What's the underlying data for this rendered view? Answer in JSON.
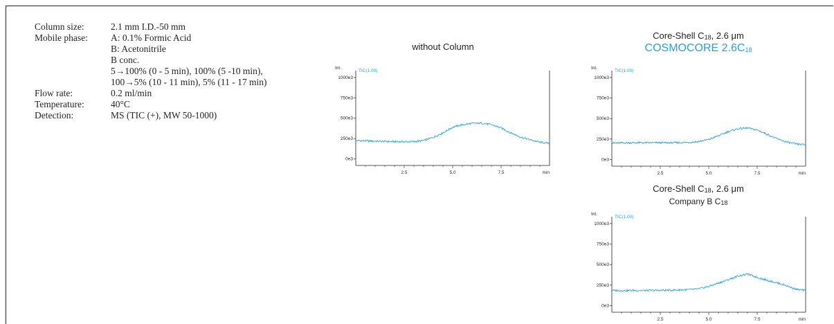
{
  "conditions": {
    "rows": [
      {
        "label": "Column size:",
        "value": "2.1 mm I.D.-50 mm"
      },
      {
        "label": "Mobile phase:",
        "value": "A: 0.1% Formic Acid"
      },
      {
        "label": "",
        "value": "B: Acetonitrile"
      },
      {
        "label": "",
        "value": "B conc."
      },
      {
        "label": "",
        "value": "5→100% (0 - 5 min), 100% (5 -10 min),"
      },
      {
        "label": "",
        "value": "100→5% (10 - 11 min), 5% (11 - 17 min)"
      },
      {
        "label": "Flow rate:",
        "value": "0.2 ml/min"
      },
      {
        "label": "Temperature:",
        "value": "40°C"
      },
      {
        "label": "Detection:",
        "value": "MS (TIC (+), MW 50-1000)"
      }
    ]
  },
  "chart1_title": "without Column",
  "chart2_title_line1_a": "Core-Shell C",
  "chart2_title_line1_sub": "18",
  "chart2_title_line1_b": ", 2.6 μm",
  "chart2_title_line2_a": "COSMOCORE 2.6C",
  "chart2_title_line2_sub": "18",
  "chart3_title_line1_a": "Core-Shell C",
  "chart3_title_line1_sub": "18",
  "chart3_title_line1_b": ", 2.6 μm",
  "chart3_title_line2_a": "Company B C",
  "chart3_title_line2_sub": "18",
  "accent_color": "#1ea3dc",
  "chart_data": [
    {
      "type": "line",
      "title": "without Column",
      "ylabel": "Int.",
      "xlabel": "min",
      "series_label": "TIC(1.00)",
      "ytick_labels": [
        "0e3",
        "250e3",
        "500e3",
        "750e3",
        "1000e3"
      ],
      "yticks": [
        0,
        250000,
        500000,
        750000,
        1000000
      ],
      "xticks": [
        2.5,
        5.0,
        7.5
      ],
      "xtick_labels": [
        "2.5",
        "5.0",
        "7.5"
      ],
      "xlim": [
        0,
        10
      ],
      "ylim": [
        -80000,
        1050000
      ],
      "x": [
        0,
        1,
        2,
        3,
        3.5,
        4,
        4.5,
        5,
        5.5,
        6,
        6.5,
        7,
        7.5,
        8,
        8.5,
        9,
        9.5,
        10
      ],
      "y": [
        225000,
        218000,
        212000,
        212000,
        225000,
        265000,
        320000,
        390000,
        420000,
        435000,
        440000,
        420000,
        380000,
        320000,
        270000,
        235000,
        205000,
        190000
      ]
    },
    {
      "type": "line",
      "title": "Core-Shell C18, 2.6 μm COSMOCORE 2.6C18",
      "ylabel": "Int.",
      "xlabel": "min",
      "series_label": "TIC(1.00)",
      "ytick_labels": [
        "0e3",
        "250e3",
        "500e3",
        "750e3",
        "1000e3"
      ],
      "yticks": [
        0,
        250000,
        500000,
        750000,
        1000000
      ],
      "xticks": [
        2.5,
        5.0,
        7.5
      ],
      "xtick_labels": [
        "2.5",
        "5.0",
        "7.5"
      ],
      "xlim": [
        0,
        10
      ],
      "ylim": [
        -80000,
        1050000
      ],
      "x": [
        0,
        1,
        2,
        3,
        4,
        4.5,
        5,
        5.5,
        6,
        6.5,
        7,
        7.5,
        8,
        8.5,
        9,
        9.5,
        10
      ],
      "y": [
        200000,
        205000,
        205000,
        205000,
        210000,
        220000,
        245000,
        290000,
        340000,
        375000,
        385000,
        360000,
        310000,
        255000,
        215000,
        190000,
        180000
      ]
    },
    {
      "type": "line",
      "title": "Core-Shell C18, 2.6 μm Company B C18",
      "ylabel": "Int.",
      "xlabel": "min",
      "series_label": "TIC(1.00)",
      "ytick_labels": [
        "0e3",
        "250e3",
        "500e3",
        "750e3",
        "1000e3"
      ],
      "yticks": [
        0,
        250000,
        500000,
        750000,
        1000000
      ],
      "xticks": [
        2.5,
        5.0,
        7.5
      ],
      "xtick_labels": [
        "2.5",
        "5.0",
        "7.5"
      ],
      "xlim": [
        0,
        10
      ],
      "ylim": [
        -80000,
        1050000
      ],
      "x": [
        0,
        1,
        2,
        3,
        4,
        4.5,
        5,
        5.5,
        6,
        6.5,
        7,
        7.5,
        8,
        8.5,
        9,
        9.5,
        10
      ],
      "y": [
        185000,
        185000,
        185000,
        188000,
        195000,
        205000,
        235000,
        275000,
        315000,
        360000,
        385000,
        345000,
        310000,
        280000,
        245000,
        200000,
        185000
      ]
    }
  ]
}
